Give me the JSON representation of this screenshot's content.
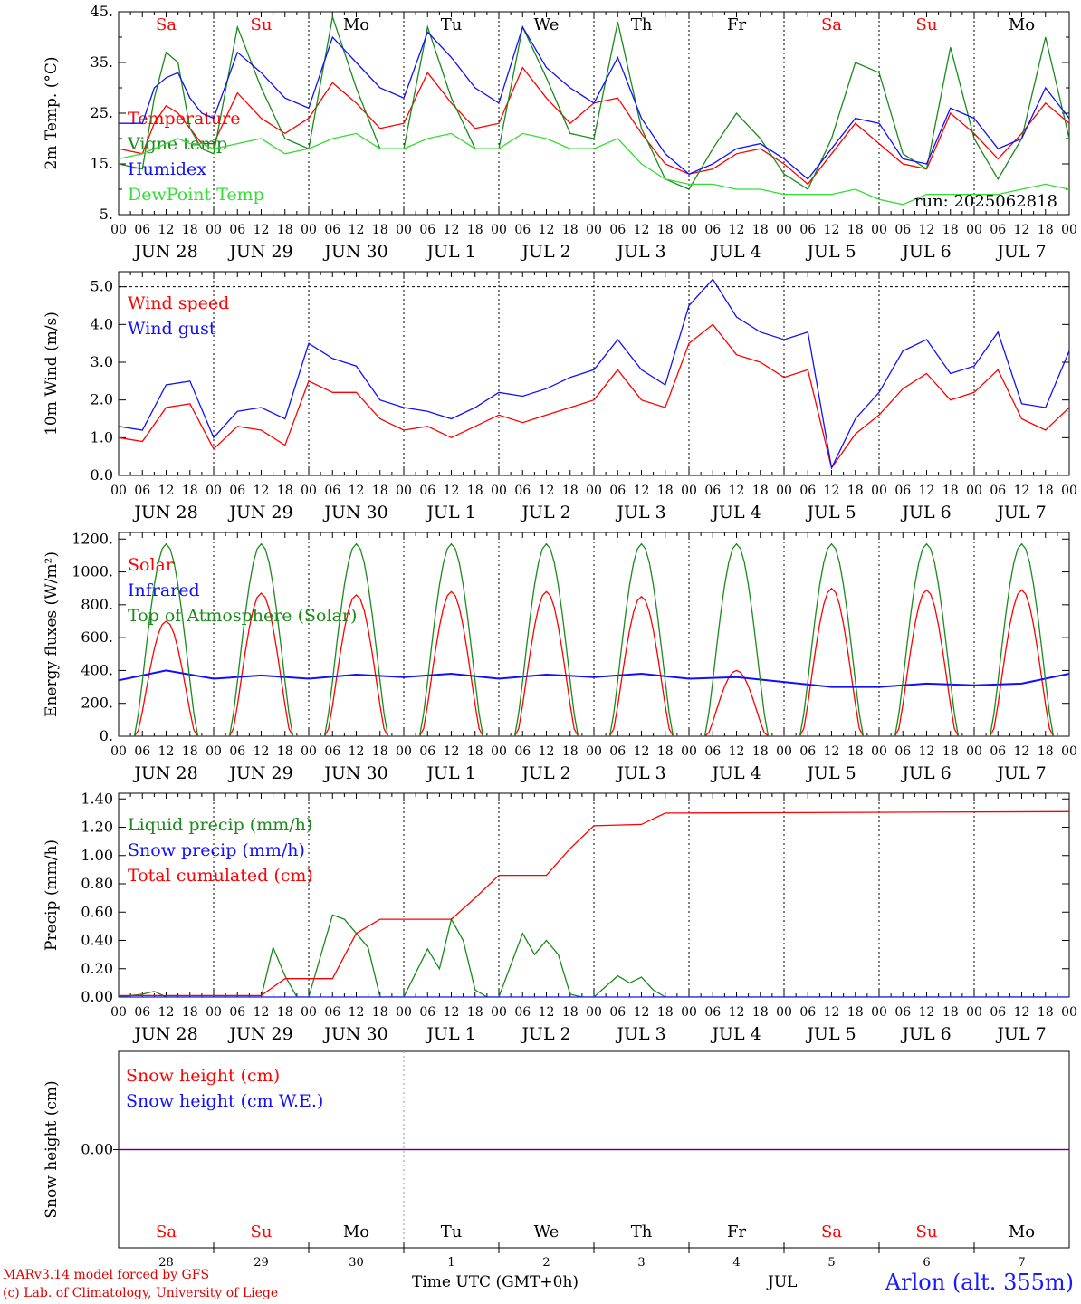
{
  "colors": {
    "red": "#ff0000",
    "green": "#1a8a1a",
    "blue": "#1010ff",
    "light_green": "#33dd33",
    "weekend": "#ff0000",
    "weekday": "#000000"
  },
  "time_axis": {
    "hour_labels": [
      "00",
      "06",
      "12",
      "18"
    ],
    "end_label": "00",
    "date_labels": [
      "JUN 28",
      "JUN 29",
      "JUN 30",
      "JUL  1",
      "JUL  2",
      "JUL  3",
      "JUL  4",
      "JUL  5",
      "JUL  6",
      "JUL  7"
    ],
    "weekdays": [
      "Sa",
      "Su",
      "Mo",
      "Tu",
      "We",
      "Th",
      "Fr",
      "Sa",
      "Su",
      "Mo"
    ],
    "weekend_flags": [
      true,
      true,
      false,
      false,
      false,
      false,
      false,
      true,
      true,
      false
    ],
    "day_numbers": [
      "28",
      "29",
      "30",
      "1",
      "2",
      "3",
      "4",
      "5",
      "6",
      "7"
    ]
  },
  "footer": {
    "model": "MARv3.14 model forced by GFS",
    "lab": "(c) Lab. of Climatology, University of Liege",
    "time_label": "Time UTC (GMT+0h)",
    "month_label": "JUL",
    "station": "Arlon (alt. 355m)"
  },
  "chart_data": [
    {
      "type": "line",
      "ylabel": "2m Temp. (°C)",
      "ylim": [
        5,
        45
      ],
      "yticks": [
        5,
        15,
        25,
        35,
        45
      ],
      "ytick_labels": [
        "5.",
        "15.",
        "25.",
        "35.",
        "45."
      ],
      "run_label": "run: 2025062818",
      "x_hours": [
        0,
        6,
        9,
        12,
        15,
        18,
        21,
        24,
        30,
        36,
        42,
        48,
        54,
        60,
        66,
        72,
        78,
        84,
        90,
        96,
        102,
        108,
        114,
        120,
        126,
        132,
        138,
        144,
        150,
        156,
        162,
        168,
        174,
        180,
        186,
        192,
        198,
        204,
        210,
        216,
        222,
        228,
        234,
        240
      ],
      "series": [
        {
          "name": "Temperature",
          "color": "#ff0000",
          "values": [
            18,
            17,
            23,
            26.5,
            25,
            22,
            19,
            19,
            29,
            24,
            21,
            24,
            31,
            27,
            22,
            23,
            33,
            27,
            22,
            23,
            34,
            28,
            23,
            27,
            28,
            21,
            15,
            13,
            14,
            17,
            18,
            15,
            11,
            17,
            23,
            19,
            15,
            14,
            25,
            21,
            16,
            21,
            27,
            23
          ]
        },
        {
          "name": "Vigne temp",
          "color": "#1a8a1a",
          "values": [
            15,
            14,
            28,
            37,
            35,
            22,
            18,
            17,
            42,
            30,
            20,
            18,
            44,
            30,
            18,
            18,
            42,
            28,
            18,
            18,
            42,
            32,
            21,
            20,
            43,
            22,
            12,
            10,
            18,
            25,
            20,
            13,
            10,
            20,
            35,
            33,
            17,
            14,
            38,
            20,
            12,
            20,
            40,
            20
          ]
        },
        {
          "name": "Humidex",
          "color": "#1010ff",
          "values": [
            23,
            23,
            30,
            32,
            33,
            28,
            25,
            24,
            37,
            33,
            28,
            26,
            40,
            35,
            30,
            28,
            41,
            36,
            30,
            27,
            42,
            34,
            30,
            27,
            36,
            24,
            17,
            13,
            15,
            18,
            19,
            16,
            12,
            18,
            24,
            23,
            16,
            15,
            26,
            24,
            18,
            20,
            30,
            24
          ]
        },
        {
          "name": "DewPoint Temp",
          "color": "#33dd33",
          "values": [
            16,
            17,
            18,
            19,
            20,
            19,
            19,
            18,
            19,
            20,
            17,
            18,
            20,
            21,
            18,
            18,
            20,
            21,
            18,
            18,
            21,
            20,
            18,
            18,
            20,
            15,
            12,
            11,
            11,
            10,
            10,
            9,
            9,
            9,
            10,
            8,
            7,
            9,
            9,
            9,
            9,
            10,
            11,
            10
          ]
        }
      ]
    },
    {
      "type": "line",
      "ylabel": "10m Wind (m/s)",
      "ylim": [
        0,
        5.4
      ],
      "yticks": [
        0,
        1,
        2,
        3,
        4,
        5
      ],
      "ytick_labels": [
        "0.0",
        "1.0",
        "2.0",
        "3.0",
        "4.0",
        "5.0"
      ],
      "dashed_level": 5.0,
      "x_hours": [
        0,
        6,
        12,
        18,
        24,
        30,
        36,
        42,
        48,
        54,
        60,
        66,
        72,
        78,
        84,
        90,
        96,
        102,
        108,
        114,
        120,
        126,
        132,
        138,
        144,
        150,
        156,
        162,
        168,
        174,
        180,
        186,
        192,
        198,
        204,
        210,
        216,
        222,
        228,
        234,
        240
      ],
      "series": [
        {
          "name": "Wind speed",
          "color": "#ff0000",
          "values": [
            1.0,
            0.9,
            1.8,
            1.9,
            0.7,
            1.3,
            1.2,
            0.8,
            2.5,
            2.2,
            2.2,
            1.5,
            1.2,
            1.3,
            1.0,
            1.3,
            1.6,
            1.4,
            1.6,
            1.8,
            2.0,
            2.8,
            2.0,
            1.8,
            3.5,
            4.0,
            3.2,
            3.0,
            2.6,
            2.8,
            0.2,
            1.1,
            1.6,
            2.3,
            2.7,
            2.0,
            2.2,
            2.8,
            1.5,
            1.2,
            1.8
          ]
        },
        {
          "name": "Wind gust",
          "color": "#1010ff",
          "values": [
            1.3,
            1.2,
            2.4,
            2.5,
            1.0,
            1.7,
            1.8,
            1.5,
            3.5,
            3.1,
            2.9,
            2.0,
            1.8,
            1.7,
            1.5,
            1.8,
            2.2,
            2.1,
            2.3,
            2.6,
            2.8,
            3.6,
            2.8,
            2.4,
            4.5,
            5.2,
            4.2,
            3.8,
            3.6,
            3.8,
            0.2,
            1.5,
            2.2,
            3.3,
            3.6,
            2.7,
            2.9,
            3.8,
            1.9,
            1.8,
            3.3
          ]
        }
      ]
    },
    {
      "type": "line",
      "ylabel": "Energy fluxes (W/m²)",
      "ylim": [
        0,
        1240
      ],
      "yticks": [
        0,
        200,
        400,
        600,
        800,
        1000,
        1200
      ],
      "ytick_labels": [
        "0.",
        "200.",
        "400.",
        "600.",
        "800.",
        "1000.",
        "1200."
      ],
      "daily_peak_hour": 12,
      "series": [
        {
          "name": "Solar",
          "color": "#ff0000",
          "daily_peaks": [
            700,
            870,
            860,
            880,
            880,
            850,
            400,
            900,
            890,
            890
          ]
        },
        {
          "name": "Infrared",
          "color": "#1010ff",
          "x_hours": [
            0,
            12,
            24,
            36,
            48,
            60,
            72,
            84,
            96,
            108,
            120,
            132,
            144,
            156,
            168,
            180,
            192,
            204,
            216,
            228,
            240
          ],
          "values": [
            340,
            400,
            350,
            370,
            350,
            375,
            360,
            380,
            350,
            375,
            360,
            380,
            350,
            360,
            330,
            300,
            300,
            320,
            310,
            320,
            380
          ]
        },
        {
          "name": "Top of Atmosphere (Solar)",
          "color": "#1a8a1a",
          "daily_peaks": [
            1170,
            1170,
            1170,
            1170,
            1170,
            1170,
            1170,
            1170,
            1170,
            1170
          ]
        }
      ]
    },
    {
      "type": "line",
      "ylabel": "Precip (mm/h)",
      "ylim": [
        0,
        1.44
      ],
      "yticks": [
        0,
        0.2,
        0.4,
        0.6,
        0.8,
        1.0,
        1.2,
        1.4
      ],
      "ytick_labels": [
        "0.00",
        "0.20",
        "0.40",
        "0.60",
        "0.80",
        "1.00",
        "1.20",
        "1.40"
      ],
      "series": [
        {
          "name": "Liquid precip (mm/h)",
          "color": "#1a8a1a",
          "x_hours": [
            0,
            6,
            9,
            12,
            24,
            36,
            39,
            42,
            45,
            48,
            54,
            57,
            60,
            63,
            66,
            72,
            78,
            81,
            84,
            87,
            90,
            93,
            96,
            102,
            105,
            108,
            111,
            114,
            117,
            120,
            126,
            129,
            132,
            135,
            138,
            144,
            240
          ],
          "values": [
            0,
            0.02,
            0.04,
            0,
            0,
            0,
            0.35,
            0.15,
            0,
            0,
            0.58,
            0.55,
            0.45,
            0.35,
            0,
            0,
            0.34,
            0.2,
            0.55,
            0.4,
            0.05,
            0,
            0,
            0.45,
            0.3,
            0.4,
            0.3,
            0.02,
            0,
            0,
            0.15,
            0.1,
            0.14,
            0.05,
            0,
            0,
            0
          ]
        },
        {
          "name": "Snow precip (mm/h)",
          "color": "#1010ff",
          "x_hours": [
            0,
            240
          ],
          "values": [
            0,
            0
          ]
        },
        {
          "name": "Total cumulated (cm)",
          "color": "#ff0000",
          "x_hours": [
            0,
            36,
            42,
            54,
            60,
            66,
            84,
            90,
            96,
            108,
            114,
            120,
            132,
            138,
            240
          ],
          "values": [
            0.01,
            0.01,
            0.13,
            0.13,
            0.45,
            0.55,
            0.55,
            0.7,
            0.86,
            0.86,
            1.05,
            1.21,
            1.22,
            1.3,
            1.31
          ]
        }
      ]
    },
    {
      "type": "line",
      "ylabel": "Snow height (cm)",
      "ylim": [
        -1,
        1
      ],
      "yticks": [
        0
      ],
      "ytick_labels": [
        "0.00"
      ],
      "series": [
        {
          "name": "Snow height (cm)",
          "color": "#ff0000",
          "x_hours": [
            0,
            240
          ],
          "values": [
            0,
            0
          ]
        },
        {
          "name": "Snow height (cm W.E.)",
          "color": "#1010ff",
          "x_hours": [
            0,
            240
          ],
          "values": [
            0,
            0
          ]
        }
      ]
    }
  ]
}
